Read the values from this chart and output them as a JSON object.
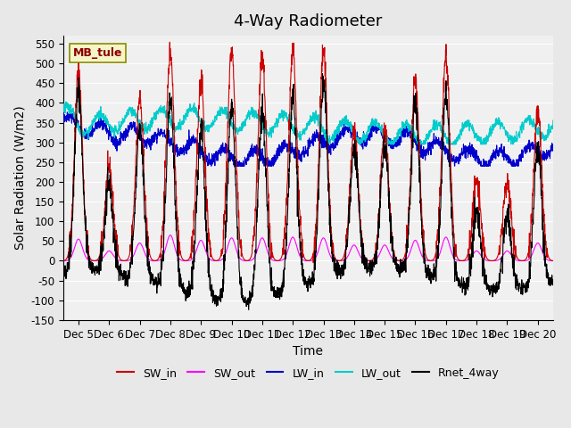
{
  "title": "4-Way Radiometer",
  "xlabel": "Time",
  "ylabel": "Solar Radiation (W/m2)",
  "ylim": [
    -150,
    570
  ],
  "yticks": [
    -150,
    -100,
    -50,
    0,
    50,
    100,
    150,
    200,
    250,
    300,
    350,
    400,
    450,
    500,
    550
  ],
  "xtick_labels": [
    "Dec 5",
    "Dec 6",
    "Dec 7",
    "Dec 8",
    "Dec 9",
    "Dec 10",
    "Dec 11",
    "Dec 12",
    "Dec 13",
    "Dec 14",
    "Dec 15",
    "Dec 16",
    "Dec 17",
    "Dec 18",
    "Dec 19",
    "Dec 20"
  ],
  "station_label": "MB_tule",
  "legend_entries": [
    {
      "label": "SW_in",
      "color": "#cc0000",
      "linestyle": "-"
    },
    {
      "label": "SW_out",
      "color": "#ff00ff",
      "linestyle": "-"
    },
    {
      "label": "LW_in",
      "color": "#0000cc",
      "linestyle": "-"
    },
    {
      "label": "LW_out",
      "color": "#00cccc",
      "linestyle": "-"
    },
    {
      "label": "Rnet_4way",
      "color": "#000000",
      "linestyle": "-"
    }
  ],
  "bg_color": "#e8e8e8",
  "plot_bg_color": "#f0f0f0",
  "grid_color": "#ffffff",
  "num_days": 16,
  "n_points": 2304,
  "title_fontsize": 13,
  "label_fontsize": 10,
  "tick_fontsize": 8.5
}
